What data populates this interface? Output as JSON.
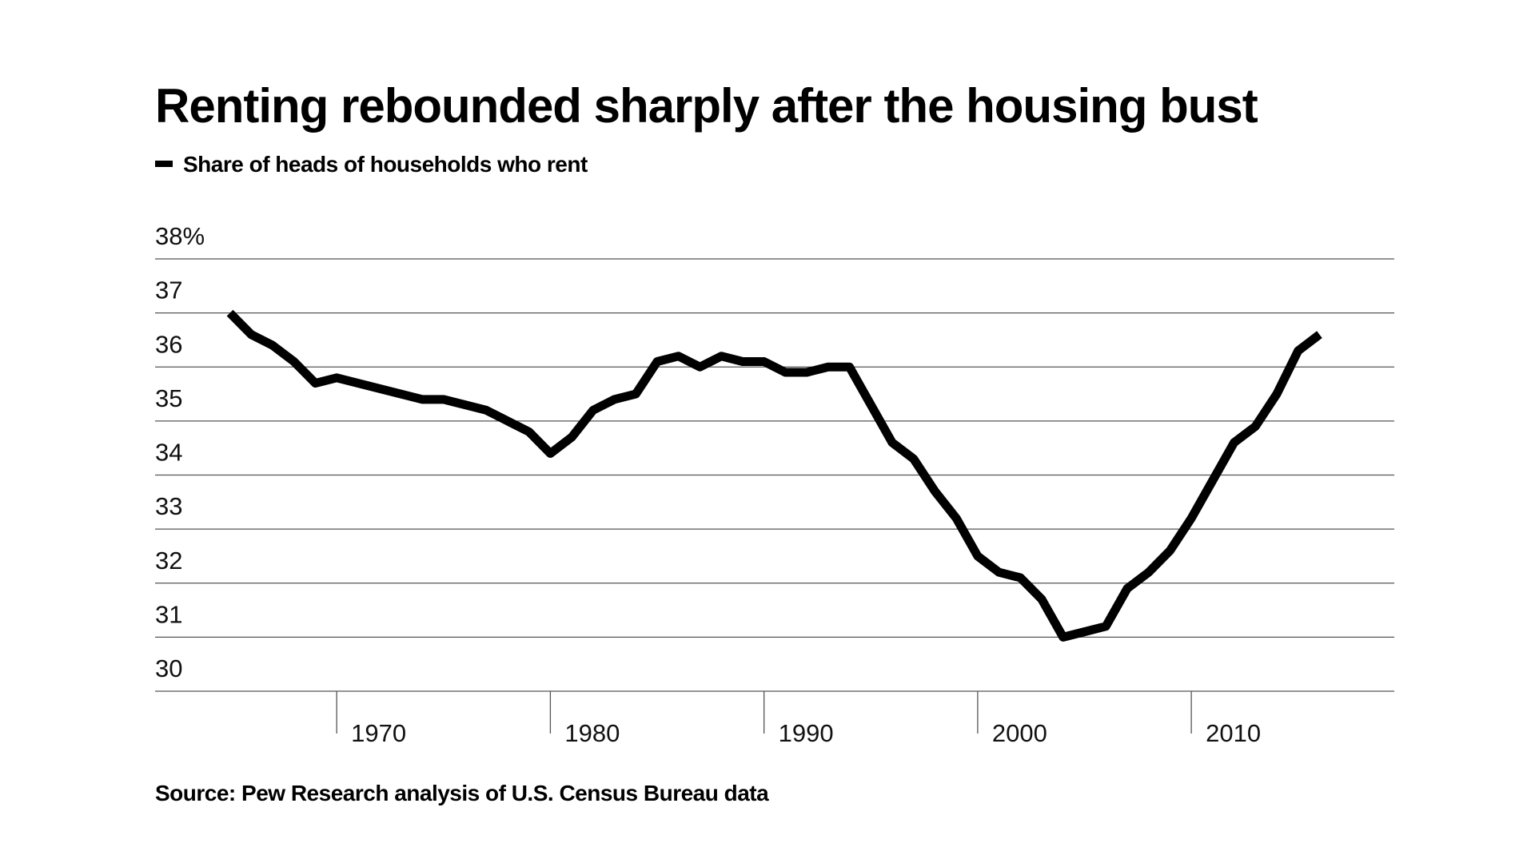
{
  "chart_data": {
    "type": "line",
    "title": "Renting rebounded sharply after the housing bust",
    "source": "Source: Pew Research analysis of U.S. Census Bureau data",
    "x": [
      1965,
      1966,
      1967,
      1968,
      1969,
      1970,
      1971,
      1972,
      1973,
      1974,
      1975,
      1976,
      1977,
      1978,
      1979,
      1980,
      1981,
      1982,
      1983,
      1984,
      1985,
      1986,
      1987,
      1988,
      1989,
      1990,
      1991,
      1992,
      1993,
      1994,
      1995,
      1996,
      1997,
      1998,
      1999,
      2000,
      2001,
      2002,
      2003,
      2004,
      2005,
      2006,
      2007,
      2008,
      2009,
      2010,
      2011,
      2012,
      2013,
      2014,
      2015,
      2016
    ],
    "series": [
      {
        "name": "Share of heads of households who rent",
        "color": "#000000",
        "values": [
          37.0,
          36.6,
          36.4,
          36.1,
          35.7,
          35.8,
          35.7,
          35.6,
          35.5,
          35.4,
          35.4,
          35.3,
          35.2,
          35.0,
          34.8,
          34.4,
          34.7,
          35.2,
          35.4,
          35.5,
          36.1,
          36.2,
          36.0,
          36.2,
          36.1,
          36.1,
          35.9,
          35.9,
          36.0,
          36.0,
          35.3,
          34.6,
          34.3,
          33.7,
          33.2,
          32.5,
          32.2,
          32.1,
          31.7,
          31.0,
          31.1,
          31.2,
          31.9,
          32.2,
          32.6,
          33.2,
          33.9,
          34.6,
          34.9,
          35.5,
          36.3,
          36.6
        ]
      }
    ],
    "xlim": [
      1961.5,
      2019.5
    ],
    "xticks": [
      1970,
      1980,
      1990,
      2000,
      2010
    ],
    "ylim": [
      30,
      38
    ],
    "yticks": [
      30,
      31,
      32,
      33,
      34,
      35,
      36,
      37,
      {
        "value": 38,
        "label": "38%"
      }
    ],
    "grid": true
  }
}
